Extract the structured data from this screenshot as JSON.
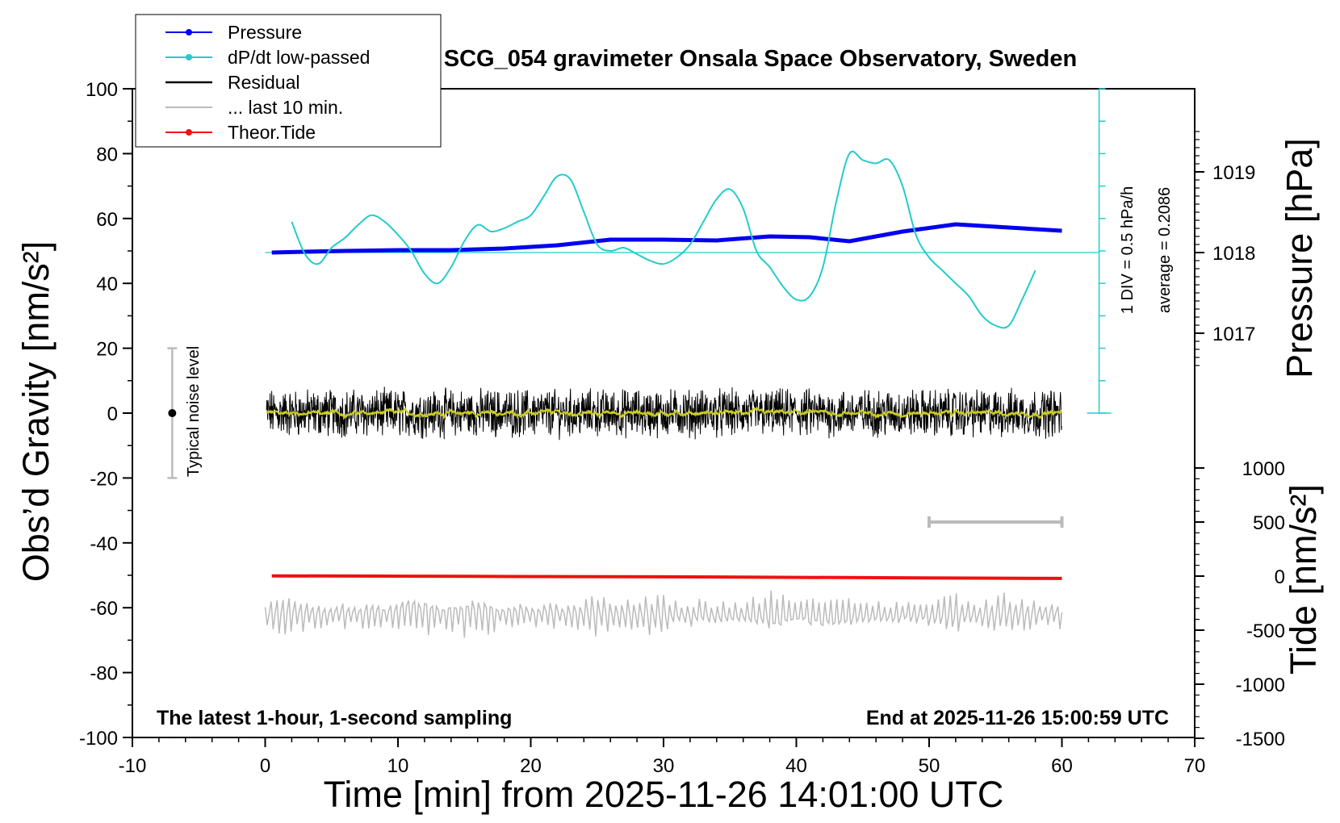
{
  "chart_data": {
    "type": "line",
    "title": "SCG_054 gravimeter Onsala Space Observatory, Sweden",
    "xlabel": "Time [min] from 2025-11-26 14:01:00 UTC",
    "ylabel_left": "Obs’d Gravity [nm/s²]",
    "ylabel_pressure": "Pressure [hPa]",
    "ylabel_tide": "Tide [nm/s²]",
    "xlim": [
      -10,
      70
    ],
    "ylim": [
      -100,
      100
    ],
    "x_ticks": [
      "-10",
      "0",
      "10",
      "20",
      "30",
      "40",
      "50",
      "60",
      "70"
    ],
    "y_ticks": [
      "100",
      "80",
      "60",
      "40",
      "20",
      "0",
      "-20",
      "-40",
      "-60",
      "-80",
      "-100"
    ],
    "pressure_axis": {
      "ticks": [
        "1019",
        "1018",
        "1017"
      ],
      "values": [
        1019,
        1018,
        1017
      ]
    },
    "tide_axis": {
      "ticks": [
        "1000",
        "500",
        "0",
        "-500",
        "-1000",
        "-1500"
      ],
      "values": [
        1000,
        500,
        0,
        -500,
        -1000,
        -1500
      ]
    },
    "footer_left": "The latest 1-hour, 1-second sampling",
    "footer_right": "End at 2025-11-26 15:00:59 UTC",
    "noise_label": "Typical noise level",
    "noise_range": [
      -20,
      20
    ],
    "div_label": "1 DIV = 0.5 hPa/h",
    "average_label": "average = 0.2086",
    "legend": [
      {
        "label": "Pressure",
        "color": "#0000ee",
        "marker": true
      },
      {
        "label": "dP/dt low-passed",
        "color": "#22cccc",
        "marker": true
      },
      {
        "label": "Residual",
        "color": "#000000",
        "marker": false
      },
      {
        "label": "... last 10 min.",
        "color": "#bbbbbb",
        "marker": false
      },
      {
        "label": "Theor.Tide",
        "color": "#ee1111",
        "marker": true
      }
    ],
    "series": [
      {
        "name": "Pressure",
        "color": "#0000ee",
        "x": [
          0.5,
          3,
          6,
          10,
          14,
          18,
          22,
          26,
          30,
          34,
          38,
          41,
          44,
          48,
          52,
          56,
          60
        ],
        "y": [
          1018.0,
          1018.01,
          1018.02,
          1018.03,
          1018.03,
          1018.05,
          1018.09,
          1018.16,
          1018.16,
          1018.15,
          1018.2,
          1018.19,
          1018.14,
          1018.26,
          1018.35,
          1018.31,
          1018.27
        ]
      },
      {
        "name": "dP/dt low-passed",
        "color": "#22cccc",
        "x": [
          2,
          3,
          4,
          5,
          6,
          7,
          8,
          9,
          10,
          11,
          12,
          13,
          14,
          15,
          16,
          17,
          18,
          19,
          20,
          21,
          22,
          23,
          24,
          25,
          26,
          27,
          28,
          29,
          30,
          31,
          32,
          33,
          34,
          35,
          36,
          37,
          38,
          39,
          40,
          41,
          42,
          43,
          44,
          45,
          46,
          47,
          48,
          49,
          50,
          51,
          52,
          53,
          54,
          55,
          56,
          57,
          58
        ],
        "y": [
          59,
          49,
          46,
          51,
          54,
          58,
          61,
          59,
          55,
          50,
          43,
          40,
          45,
          53,
          58,
          56,
          57,
          59,
          61,
          67,
          73,
          72,
          62,
          52,
          50,
          51,
          49,
          47,
          46,
          48,
          52,
          59,
          66,
          69,
          63,
          50,
          45,
          39,
          35,
          36,
          45,
          65,
          80,
          78,
          77,
          78,
          70,
          55,
          48,
          44,
          40,
          36,
          30,
          27,
          27,
          35,
          44
        ]
      },
      {
        "name": "Residual",
        "color": "#000000",
        "x_range": [
          0,
          60
        ],
        "approx_level": 0,
        "amplitude": 6
      },
      {
        "name": "... last 10 min.",
        "color": "#bbbbbb",
        "x_range": [
          0,
          60
        ],
        "approx_level": -62,
        "amplitude": 6
      },
      {
        "name": "Theor.Tide",
        "color": "#ee1111",
        "x": [
          0.5,
          15,
          30,
          45,
          60
        ],
        "y": [
          2,
          -2,
          -7,
          -14,
          -22
        ]
      }
    ],
    "last_10_min_bar": {
      "x": [
        50,
        60
      ],
      "tide_value": 500
    },
    "ddt_reference": {
      "value": 1018.0,
      "x_end": 62.8
    }
  }
}
